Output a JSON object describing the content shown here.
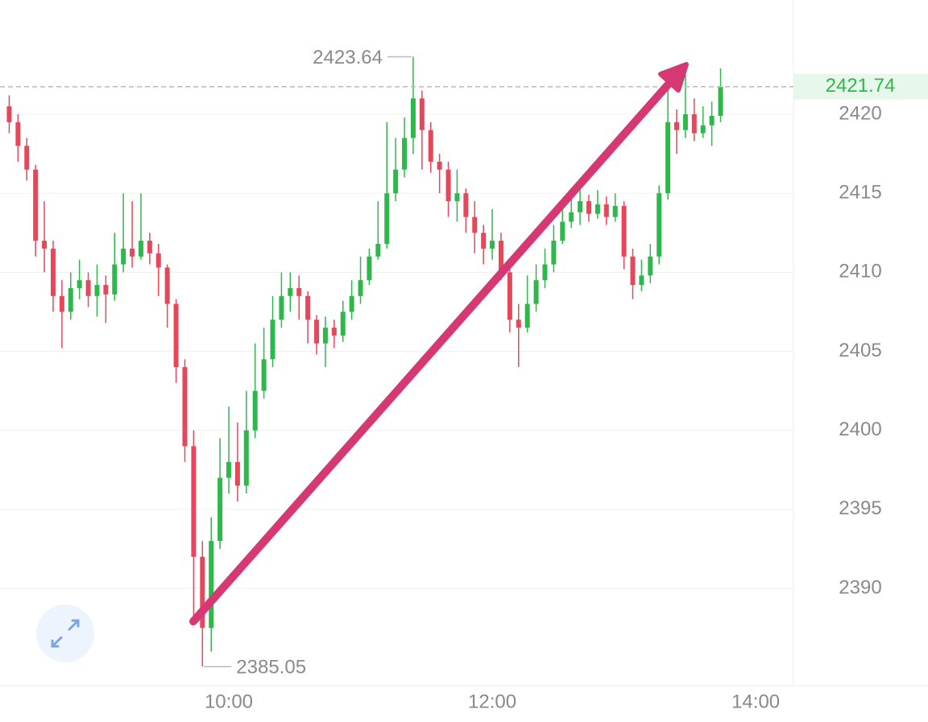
{
  "chart_data": {
    "type": "candlestick",
    "x": [
      500,
      504,
      508,
      512,
      516,
      520,
      524,
      528,
      532,
      536,
      540,
      544,
      548,
      552,
      556,
      560,
      564,
      568,
      572,
      576,
      580,
      584,
      588,
      592,
      596,
      600,
      604,
      608,
      612,
      616,
      620,
      624,
      628,
      632,
      636,
      640,
      644,
      648,
      652,
      656,
      660,
      664,
      668,
      672,
      676,
      680,
      684,
      688,
      692,
      696,
      700,
      704,
      708,
      712,
      716,
      720,
      724,
      728,
      732,
      736,
      740,
      744,
      748,
      752,
      756,
      760,
      764,
      768,
      772,
      776,
      780,
      784,
      788,
      792,
      796,
      800,
      804,
      808,
      812,
      816,
      820,
      824
    ],
    "open": [
      2420.5,
      2419.5,
      2418,
      2416.5,
      2412,
      2411.5,
      2408.5,
      2407.5,
      2409,
      2409.5,
      2408.5,
      2409.2,
      2408.6,
      2410.5,
      2411.5,
      2411,
      2412,
      2411.2,
      2410.3,
      2408,
      2404,
      2399,
      2392,
      2387.5,
      2393,
      2397,
      2398,
      2396.5,
      2400,
      2402.5,
      2404.5,
      2407,
      2408.5,
      2409,
      2408.5,
      2407,
      2405.5,
      2406.5,
      2406,
      2407.5,
      2408.5,
      2409.5,
      2411,
      2411.8,
      2415,
      2416.5,
      2418.5,
      2421,
      2419,
      2417,
      2416.5,
      2414.5,
      2415,
      2413.5,
      2412.5,
      2411.5,
      2412,
      2410,
      2407,
      2406.5,
      2408,
      2409.5,
      2410.5,
      2412,
      2413.2,
      2413.8,
      2414.5,
      2413.7,
      2414.3,
      2413.5,
      2414.2,
      2411,
      2409.2,
      2409.8,
      2411,
      2415,
      2419.5,
      2419,
      2420,
      2418.8,
      2419.3,
      2419.9
    ],
    "high": [
      2421.2,
      2420,
      2418.5,
      2416.8,
      2414.5,
      2412,
      2409.5,
      2410,
      2410.8,
      2410,
      2410.5,
      2409.8,
      2412.5,
      2415,
      2414.5,
      2415,
      2412.5,
      2411.8,
      2410.5,
      2408.3,
      2404.5,
      2400,
      2393,
      2394.5,
      2399.5,
      2401.5,
      2400.5,
      2402.5,
      2405.5,
      2406.5,
      2408.5,
      2410,
      2410,
      2409.8,
      2408.8,
      2407.3,
      2407.2,
      2407,
      2408.2,
      2409.5,
      2411,
      2411.5,
      2414.5,
      2419.5,
      2418.5,
      2419.8,
      2423.64,
      2421.5,
      2419.5,
      2417.5,
      2417,
      2416.5,
      2415.3,
      2414.5,
      2413,
      2414,
      2412.5,
      2410.5,
      2408,
      2409.8,
      2410.5,
      2411.5,
      2413,
      2414.5,
      2415,
      2415.2,
      2414.9,
      2415.2,
      2414.8,
      2415,
      2414.5,
      2411.5,
      2410.8,
      2411.8,
      2415.5,
      2422.8,
      2420.3,
      2422.5,
      2421,
      2420.5,
      2420.8,
      2422.9
    ],
    "low": [
      2418.8,
      2417,
      2415.8,
      2411,
      2410,
      2407.5,
      2405.2,
      2407,
      2408.3,
      2407.8,
      2407.2,
      2406.8,
      2408.2,
      2410,
      2410.3,
      2410.8,
      2410.5,
      2408.5,
      2406.5,
      2403,
      2398,
      2387.8,
      2385.05,
      2386,
      2392.5,
      2396,
      2395.5,
      2396,
      2399.5,
      2402,
      2404,
      2406.5,
      2407.5,
      2407,
      2405.5,
      2404.8,
      2404,
      2405.2,
      2405.6,
      2407,
      2408,
      2409.2,
      2410.8,
      2411.5,
      2414.5,
      2416,
      2417.5,
      2416.5,
      2416.3,
      2415,
      2413.5,
      2413.2,
      2412.5,
      2411.2,
      2410.5,
      2410.8,
      2409.5,
      2406.2,
      2404,
      2406.2,
      2407.5,
      2409,
      2410,
      2411.8,
      2412.8,
      2413,
      2413.2,
      2413.4,
      2413,
      2413.2,
      2410.2,
      2408.3,
      2408.8,
      2409.3,
      2410.5,
      2414.6,
      2417.5,
      2418.5,
      2418.3,
      2418.5,
      2418,
      2419.5
    ],
    "close": [
      2419.5,
      2418,
      2416.5,
      2412,
      2411.5,
      2408.5,
      2407.5,
      2409,
      2409.5,
      2408.5,
      2409.2,
      2408.6,
      2410.5,
      2411.5,
      2411,
      2412,
      2411.2,
      2410.3,
      2408,
      2404,
      2399,
      2392,
      2387.5,
      2393,
      2397,
      2398,
      2396.5,
      2400,
      2402.5,
      2404.5,
      2407,
      2408.5,
      2409,
      2408.5,
      2407,
      2405.5,
      2406.5,
      2406,
      2407.5,
      2408.5,
      2409.5,
      2411,
      2411.8,
      2415,
      2416.5,
      2418.5,
      2421,
      2419,
      2417,
      2416.5,
      2414.5,
      2415,
      2413.5,
      2412.5,
      2411.5,
      2412,
      2410,
      2407,
      2406.5,
      2408,
      2409.5,
      2410.5,
      2412,
      2413.2,
      2413.8,
      2414.5,
      2413.7,
      2414.3,
      2413.5,
      2414.2,
      2411,
      2409.2,
      2409.8,
      2411,
      2415,
      2419.5,
      2419,
      2420,
      2418.8,
      2419.3,
      2419.9,
      2421.74
    ],
    "up_color": "#2eb84b",
    "down_color": "#e5485a",
    "xlim": [
      495.8,
      857.2
    ],
    "xticks": [
      {
        "value": 600,
        "label": "10:00"
      },
      {
        "value": 720,
        "label": "12:00"
      },
      {
        "value": 840,
        "label": "14:00"
      }
    ],
    "ylim": [
      2383.84,
      2427.23
    ],
    "yticks": [
      2390,
      2395,
      2400,
      2405,
      2410,
      2415,
      2420
    ],
    "grid": true,
    "last_price": 2421.74,
    "annotations": [
      {
        "value": 2423.64,
        "x": 684
      },
      {
        "value": 2385.05,
        "x": 588
      }
    ]
  }
}
